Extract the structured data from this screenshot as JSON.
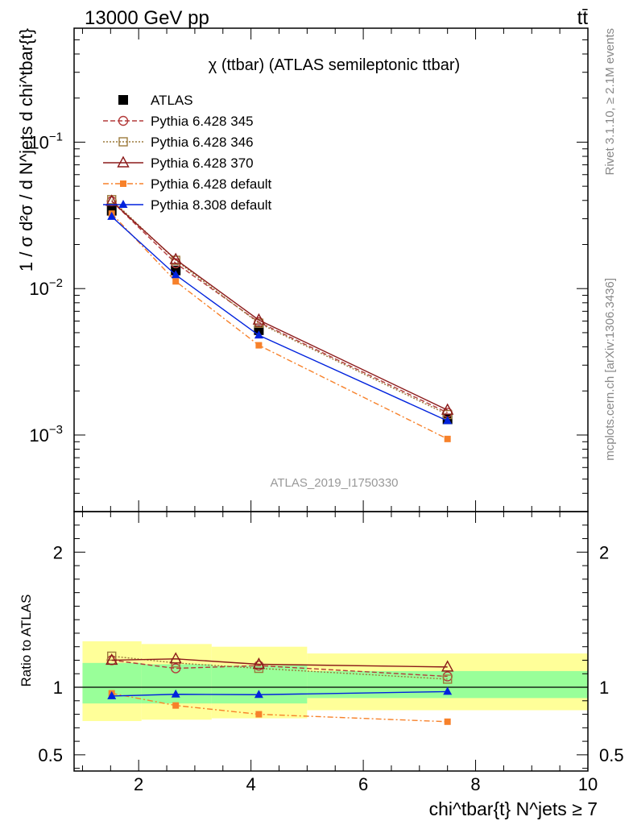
{
  "header": {
    "left_text": "13000 GeV pp",
    "right_text": "tt̄"
  },
  "main_title": "χ (ttbar) (ATLAS semileptonic ttbar)",
  "watermark": "ATLAS_2019_I1750330",
  "side_text": {
    "version": "Rivet 3.1.10, ≥ 2.1M events",
    "source": "mcplots.cern.ch [arXiv:1306.3436]"
  },
  "axes": {
    "ylabel_top": "1 / σ d²σ / d N^jets d chi^tbar{t}",
    "ylabel_bottom": "Ratio to ATLAS",
    "xlabel": "chi^tbar{t} N^jets ≥ 7"
  },
  "chart_data": [
    {
      "type": "line",
      "panel": "main",
      "yscale": "log",
      "xlim": [
        0.85,
        10.0
      ],
      "ylim": [
        0.0003,
        0.6
      ],
      "x_ticks": [
        "2",
        "4",
        "6",
        "8",
        "10"
      ],
      "y_ticks": [
        "10^-3",
        "10^-2",
        "10^-1"
      ],
      "x": [
        1.52,
        2.66,
        4.14,
        7.5
      ],
      "x_bin_edges": [
        1.0,
        2.05,
        3.3,
        5.0,
        10.0
      ],
      "series": [
        {
          "name": "ATLAS",
          "color": "#000000",
          "marker": "square-filled",
          "style": "none",
          "values": [
            0.034,
            0.0133,
            0.0052,
            0.00128
          ]
        },
        {
          "name": "Pythia 6.428 345",
          "color": "#b33b3b",
          "marker": "circle-open",
          "style": "dashed",
          "values": [
            0.0395,
            0.0149,
            0.0059,
            0.00142
          ]
        },
        {
          "name": "Pythia 6.428 346",
          "color": "#9c7a3c",
          "marker": "square-open",
          "style": "dotted",
          "values": [
            0.0405,
            0.0156,
            0.0058,
            0.00138
          ]
        },
        {
          "name": "Pythia 6.428 370",
          "color": "#8b1a1a",
          "marker": "triangle-open",
          "style": "solid",
          "values": [
            0.0395,
            0.0158,
            0.0061,
            0.00148
          ]
        },
        {
          "name": "Pythia 6.428 default",
          "color": "#f7812a",
          "marker": "square-filled-small",
          "style": "dashdot",
          "values": [
            0.0325,
            0.0112,
            0.0041,
            0.00094
          ]
        },
        {
          "name": "Pythia 8.308 default",
          "color": "#0022dd",
          "marker": "triangle-filled",
          "style": "solid",
          "values": [
            0.031,
            0.0124,
            0.0048,
            0.00125
          ]
        }
      ]
    },
    {
      "type": "line",
      "panel": "ratio",
      "xlim": [
        0.85,
        10.0
      ],
      "ylim": [
        0.38,
        2.3
      ],
      "x_ticks": [
        "2",
        "4",
        "6",
        "8",
        "10"
      ],
      "y_ticks": [
        "0.5",
        "1",
        "2"
      ],
      "x": [
        1.52,
        2.66,
        4.14,
        7.5
      ],
      "bands": {
        "x_bin_edges": [
          1.0,
          2.05,
          3.3,
          5.0,
          10.0
        ],
        "yellow_lo": [
          0.75,
          0.76,
          0.77,
          0.83
        ],
        "yellow_hi": [
          1.34,
          1.32,
          1.3,
          1.25
        ],
        "green_lo": [
          0.88,
          0.88,
          0.88,
          0.92
        ],
        "green_hi": [
          1.18,
          1.17,
          1.16,
          1.12
        ]
      },
      "series": [
        {
          "name": "Pythia 6.428 345",
          "color": "#b33b3b",
          "marker": "circle-open",
          "style": "dashed",
          "values": [
            1.2,
            1.14,
            1.16,
            1.08
          ]
        },
        {
          "name": "Pythia 6.428 346",
          "color": "#9c7a3c",
          "marker": "square-open",
          "style": "dotted",
          "values": [
            1.23,
            1.18,
            1.14,
            1.06
          ]
        },
        {
          "name": "Pythia 6.428 370",
          "color": "#8b1a1a",
          "marker": "triangle-open",
          "style": "solid",
          "values": [
            1.2,
            1.21,
            1.17,
            1.15
          ]
        },
        {
          "name": "Pythia 6.428 default",
          "color": "#f7812a",
          "marker": "square-filled-small",
          "style": "dashdot",
          "values": [
            0.955,
            0.865,
            0.8,
            0.745
          ]
        },
        {
          "name": "Pythia 8.308 default",
          "color": "#0022dd",
          "marker": "triangle-filled",
          "style": "solid",
          "values": [
            0.935,
            0.948,
            0.945,
            0.968
          ]
        }
      ]
    }
  ]
}
